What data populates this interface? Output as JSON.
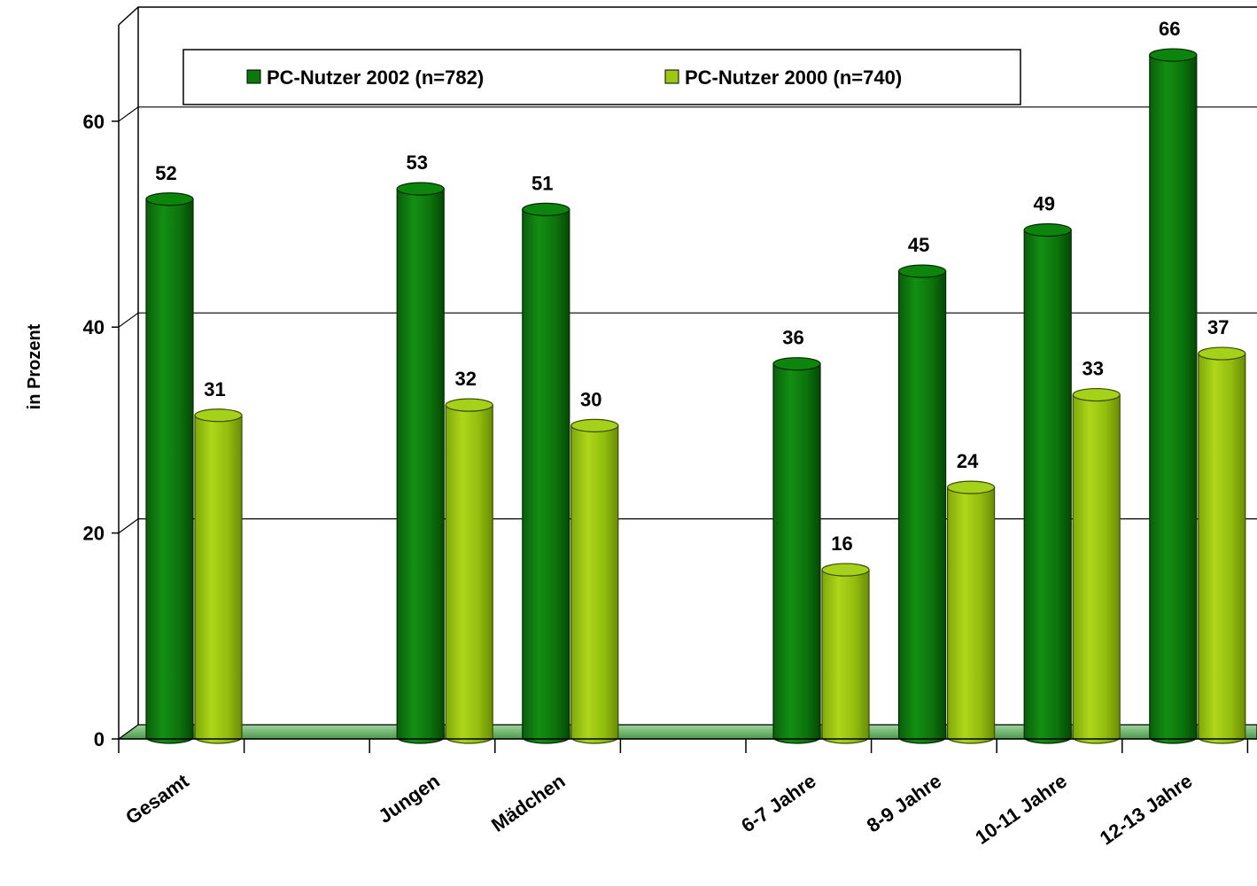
{
  "chart_data": {
    "type": "bar",
    "title": "",
    "xlabel": "",
    "ylabel": "in Prozent",
    "ylim": [
      0,
      70
    ],
    "yticks": [
      0,
      20,
      40,
      60
    ],
    "grid": true,
    "legend_position": "top",
    "categories": [
      "Gesamt",
      "",
      "Jungen",
      "Mädchen",
      "",
      "6-7 Jahre",
      "8-9 Jahre",
      "10-11 Jahre",
      "12-13 Jahre"
    ],
    "series": [
      {
        "name": "PC-Nutzer 2002 (n=782)",
        "color": "#0b7a0b",
        "values": [
          52,
          null,
          53,
          51,
          null,
          36,
          45,
          49,
          66
        ]
      },
      {
        "name": "PC-Nutzer 2000 (n=740)",
        "color": "#9dc810",
        "values": [
          31,
          null,
          32,
          30,
          null,
          16,
          24,
          33,
          37
        ]
      }
    ]
  }
}
